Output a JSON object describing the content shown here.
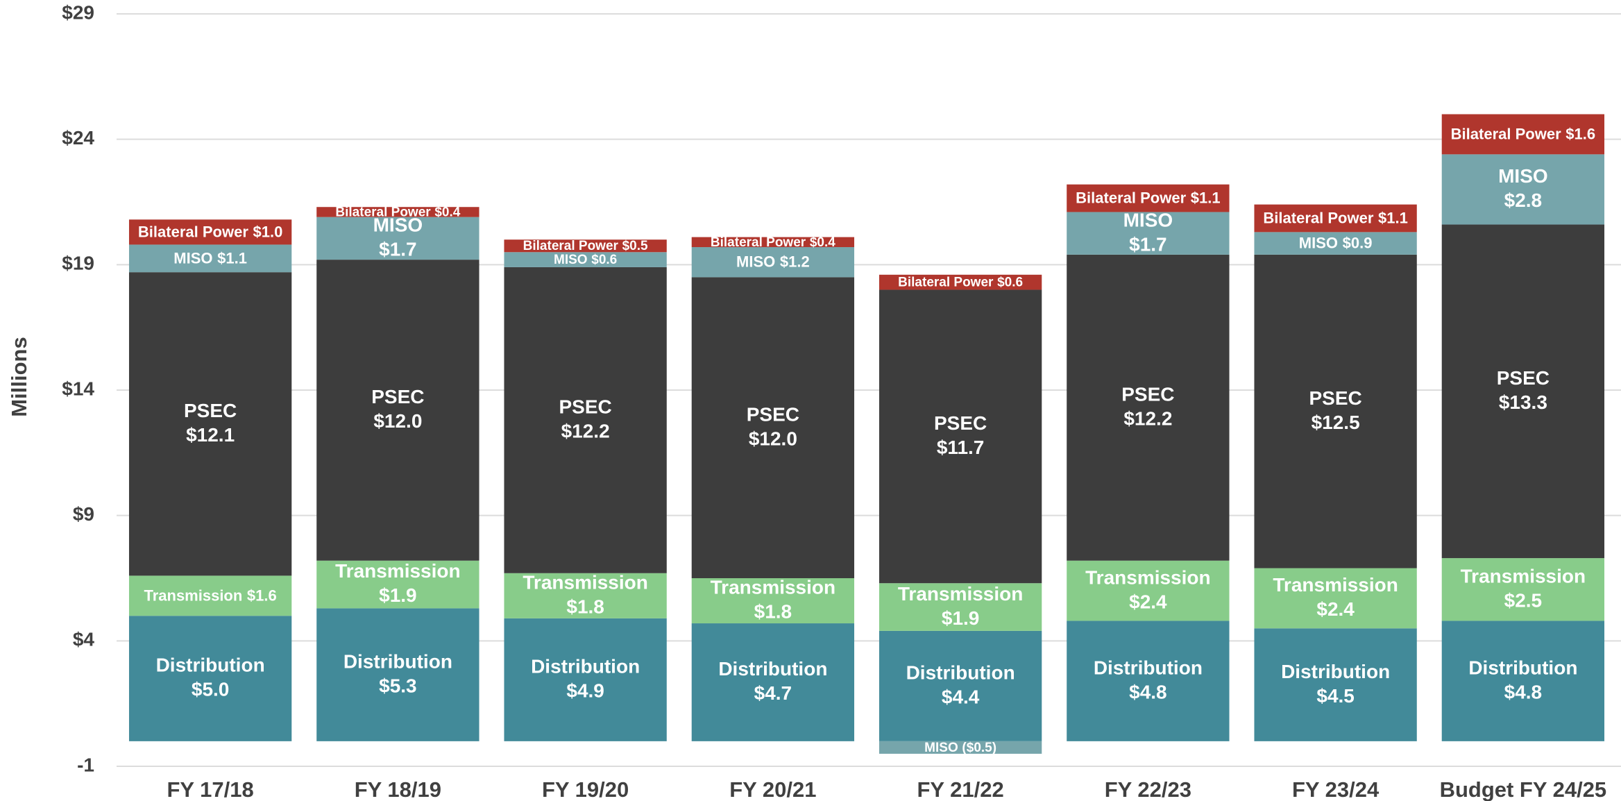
{
  "chart_data": {
    "type": "stacked_bar",
    "y_label": "Millions",
    "categories": [
      "FY 17/18",
      "FY 18/19",
      "FY 19/20",
      "FY 20/21",
      "FY 21/22",
      "FY 22/23",
      "FY 23/24",
      "Budget FY 24/25"
    ],
    "series": [
      {
        "name": "Distribution",
        "color": "#428a99",
        "values": [
          5.0,
          5.3,
          4.9,
          4.7,
          4.4,
          4.8,
          4.5,
          4.8
        ],
        "value_labels": [
          "$5.0",
          "$5.3",
          "$4.9",
          "$4.7",
          "$4.4",
          "$4.8",
          "$4.5",
          "$4.8"
        ]
      },
      {
        "name": "Transmission",
        "color": "#88cc8a",
        "values": [
          1.6,
          1.9,
          1.8,
          1.8,
          1.9,
          2.4,
          2.4,
          2.5
        ],
        "value_labels": [
          "$1.6",
          "$1.9",
          "$1.8",
          "$1.8",
          "$1.9",
          "$2.4",
          "$2.4",
          "$2.5"
        ]
      },
      {
        "name": "PSEC",
        "color": "#3d3d3d",
        "values": [
          12.1,
          12.0,
          12.2,
          12.0,
          11.7,
          12.2,
          12.5,
          13.3
        ],
        "value_labels": [
          "$12.1",
          "$12.0",
          "$12.2",
          "$12.0",
          "$11.7",
          "$12.2",
          "$12.5",
          "$13.3"
        ]
      },
      {
        "name": "MISO",
        "color": "#76a5ab",
        "values": [
          1.1,
          1.7,
          0.6,
          1.2,
          -0.5,
          1.7,
          0.9,
          2.8
        ],
        "value_labels": [
          "$1.1",
          "$1.7",
          "$0.6",
          "$1.2",
          "($0.5)",
          "$1.7",
          "$0.9",
          "$2.8"
        ]
      },
      {
        "name": "Bilateral Power",
        "color": "#b0362d",
        "values": [
          1.0,
          0.4,
          0.5,
          0.4,
          0.6,
          1.1,
          1.1,
          1.6
        ],
        "value_labels": [
          "$1.0",
          "$0.4",
          "$0.5",
          "$0.4",
          "$0.6",
          "$1.1",
          "$1.1",
          "$1.6"
        ]
      }
    ],
    "ylim": [
      -1,
      29
    ],
    "yticks": [
      {
        "value": -1,
        "label": "-1"
      },
      {
        "value": 4,
        "label": "$4"
      },
      {
        "value": 9,
        "label": "$9"
      },
      {
        "value": 14,
        "label": "$14"
      },
      {
        "value": 19,
        "label": "$19"
      },
      {
        "value": 24,
        "label": "$24"
      },
      {
        "value": 29,
        "label": "$29"
      }
    ],
    "grid": true
  }
}
